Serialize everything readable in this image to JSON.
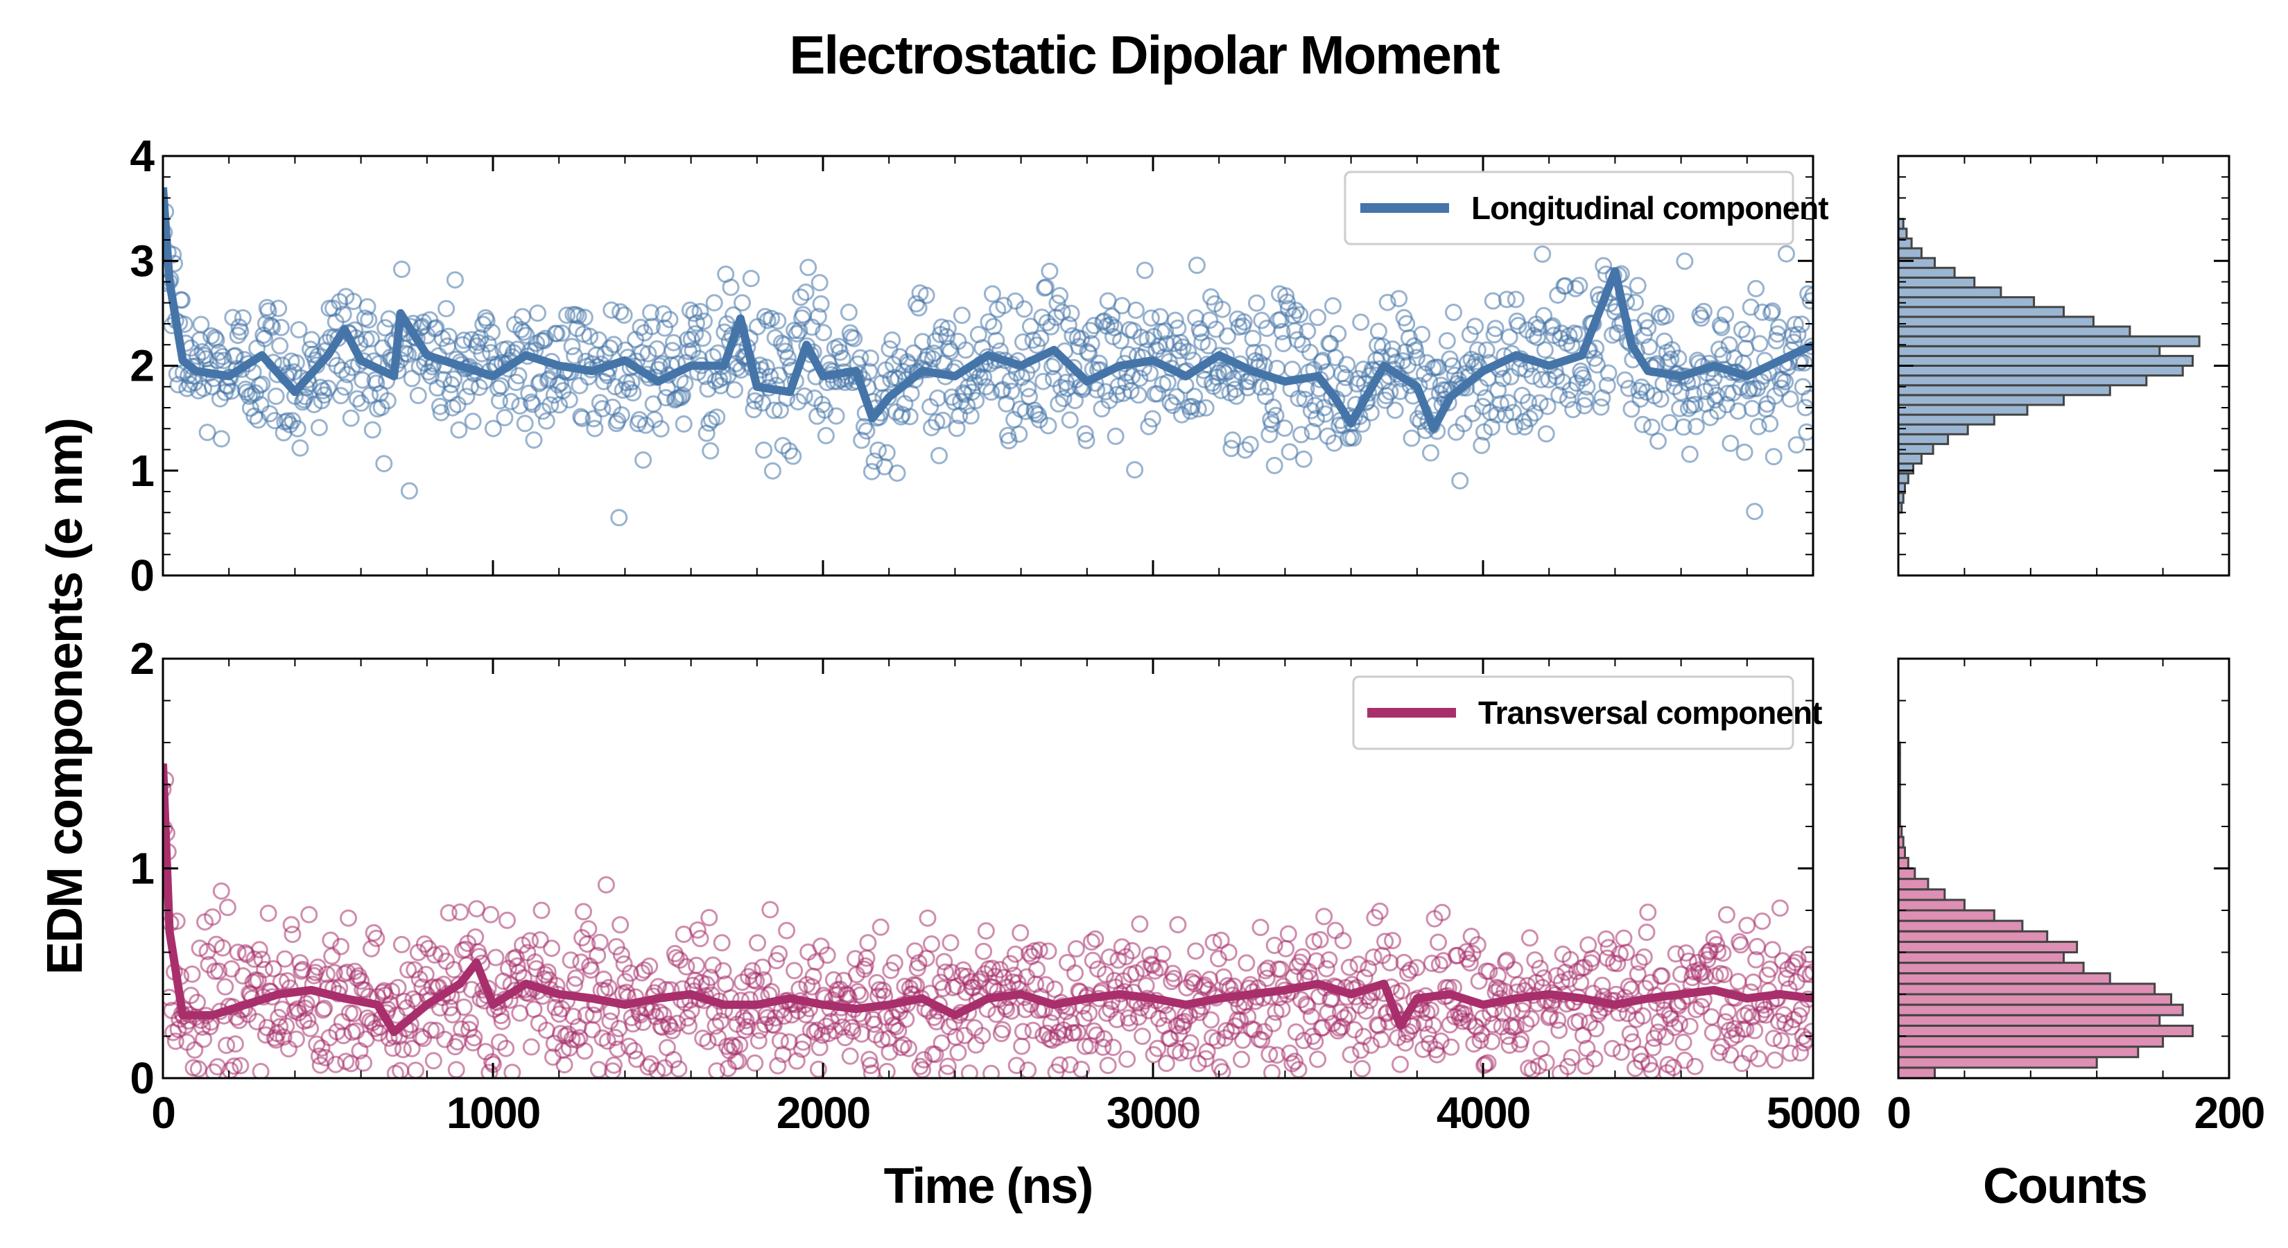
{
  "figure": {
    "title": "Electrostatic Dipolar Moment",
    "ylabel": "EDM components (e nm)",
    "xlabel_time": "Time (ns)",
    "xlabel_counts": "Counts"
  },
  "colors": {
    "longitudinal": "#4575a8",
    "longitudinal_hist": "#9bb6d2",
    "transversal": "#a82f6c",
    "transversal_hist": "#de8fb4",
    "hist_edge": "#444444"
  },
  "chart_data": [
    {
      "id": "longitudinal-timeseries",
      "type": "scatter+line",
      "series": [
        {
          "name": "Longitudinal component",
          "style": "line (running average) over hollow-circle scatter"
        }
      ],
      "legend_label": "Longitudinal component",
      "legend_placement": "top-right",
      "xlim": [
        0,
        5000
      ],
      "ylim": [
        0,
        4
      ],
      "yticks": [
        0,
        1,
        2,
        3,
        4
      ],
      "yticklabels": [
        "0",
        "1",
        "2",
        "3",
        "4"
      ],
      "initial_value": 3.7,
      "mean": 2.0,
      "scatter_std": 0.35,
      "avg_points": [
        [
          0,
          3.7
        ],
        [
          20,
          2.8
        ],
        [
          60,
          2.05
        ],
        [
          100,
          1.95
        ],
        [
          200,
          1.9
        ],
        [
          300,
          2.1
        ],
        [
          400,
          1.75
        ],
        [
          500,
          2.1
        ],
        [
          550,
          2.35
        ],
        [
          600,
          2.05
        ],
        [
          700,
          1.9
        ],
        [
          720,
          2.5
        ],
        [
          800,
          2.1
        ],
        [
          900,
          2.0
        ],
        [
          1000,
          1.9
        ],
        [
          1100,
          2.1
        ],
        [
          1200,
          2.0
        ],
        [
          1300,
          1.95
        ],
        [
          1400,
          2.05
        ],
        [
          1500,
          1.85
        ],
        [
          1600,
          2.0
        ],
        [
          1700,
          2.0
        ],
        [
          1750,
          2.45
        ],
        [
          1800,
          1.8
        ],
        [
          1900,
          1.75
        ],
        [
          1950,
          2.2
        ],
        [
          2000,
          1.9
        ],
        [
          2100,
          1.95
        ],
        [
          2150,
          1.5
        ],
        [
          2200,
          1.7
        ],
        [
          2300,
          1.95
        ],
        [
          2400,
          1.9
        ],
        [
          2500,
          2.1
        ],
        [
          2600,
          2.0
        ],
        [
          2700,
          2.15
        ],
        [
          2800,
          1.85
        ],
        [
          2900,
          2.0
        ],
        [
          3000,
          2.05
        ],
        [
          3100,
          1.9
        ],
        [
          3200,
          2.1
        ],
        [
          3300,
          1.95
        ],
        [
          3400,
          1.85
        ],
        [
          3500,
          1.9
        ],
        [
          3550,
          1.7
        ],
        [
          3600,
          1.45
        ],
        [
          3700,
          2.0
        ],
        [
          3800,
          1.8
        ],
        [
          3850,
          1.4
        ],
        [
          3900,
          1.7
        ],
        [
          4000,
          1.95
        ],
        [
          4100,
          2.1
        ],
        [
          4200,
          2.0
        ],
        [
          4300,
          2.1
        ],
        [
          4400,
          2.9
        ],
        [
          4450,
          2.2
        ],
        [
          4500,
          1.95
        ],
        [
          4600,
          1.9
        ],
        [
          4700,
          2.0
        ],
        [
          4800,
          1.9
        ],
        [
          4900,
          2.05
        ],
        [
          5000,
          2.2
        ]
      ]
    },
    {
      "id": "transversal-timeseries",
      "type": "scatter+line",
      "series": [
        {
          "name": "Transversal component",
          "style": "line (running average) over hollow-circle scatter"
        }
      ],
      "legend_label": "Transversal component",
      "legend_placement": "top-right",
      "xlim": [
        0,
        5000
      ],
      "ylim": [
        0,
        2
      ],
      "yticks": [
        0,
        1,
        2
      ],
      "yticklabels": [
        "0",
        "1",
        "2"
      ],
      "xticks": [
        0,
        1000,
        2000,
        3000,
        4000,
        5000
      ],
      "xticklabels": [
        "0",
        "1000",
        "2000",
        "3000",
        "4000",
        "5000"
      ],
      "initial_value": 1.5,
      "mean": 0.36,
      "scatter_std": 0.18,
      "avg_points": [
        [
          0,
          1.5
        ],
        [
          20,
          0.7
        ],
        [
          60,
          0.3
        ],
        [
          150,
          0.3
        ],
        [
          250,
          0.35
        ],
        [
          350,
          0.4
        ],
        [
          450,
          0.42
        ],
        [
          550,
          0.38
        ],
        [
          650,
          0.35
        ],
        [
          700,
          0.22
        ],
        [
          800,
          0.35
        ],
        [
          900,
          0.45
        ],
        [
          950,
          0.55
        ],
        [
          1000,
          0.35
        ],
        [
          1100,
          0.45
        ],
        [
          1200,
          0.4
        ],
        [
          1300,
          0.38
        ],
        [
          1400,
          0.35
        ],
        [
          1500,
          0.38
        ],
        [
          1600,
          0.4
        ],
        [
          1700,
          0.35
        ],
        [
          1800,
          0.35
        ],
        [
          1900,
          0.38
        ],
        [
          2000,
          0.35
        ],
        [
          2100,
          0.33
        ],
        [
          2200,
          0.35
        ],
        [
          2300,
          0.38
        ],
        [
          2400,
          0.3
        ],
        [
          2500,
          0.38
        ],
        [
          2600,
          0.4
        ],
        [
          2700,
          0.35
        ],
        [
          2800,
          0.38
        ],
        [
          2900,
          0.4
        ],
        [
          3000,
          0.38
        ],
        [
          3100,
          0.35
        ],
        [
          3200,
          0.38
        ],
        [
          3300,
          0.4
        ],
        [
          3400,
          0.42
        ],
        [
          3500,
          0.45
        ],
        [
          3600,
          0.4
        ],
        [
          3700,
          0.45
        ],
        [
          3750,
          0.25
        ],
        [
          3800,
          0.38
        ],
        [
          3900,
          0.4
        ],
        [
          4000,
          0.35
        ],
        [
          4100,
          0.38
        ],
        [
          4200,
          0.4
        ],
        [
          4300,
          0.38
        ],
        [
          4400,
          0.35
        ],
        [
          4500,
          0.38
        ],
        [
          4600,
          0.4
        ],
        [
          4700,
          0.42
        ],
        [
          4800,
          0.38
        ],
        [
          4900,
          0.4
        ],
        [
          5000,
          0.38
        ]
      ]
    },
    {
      "id": "longitudinal-histogram",
      "type": "bar",
      "orientation": "horizontal",
      "xlim": [
        0,
        200
      ],
      "ylim": [
        0,
        4
      ],
      "bin_range": [
        0.6,
        3.4
      ],
      "counts": [
        2,
        3,
        4,
        6,
        9,
        14,
        21,
        30,
        42,
        58,
        78,
        100,
        128,
        150,
        172,
        178,
        158,
        182,
        140,
        118,
        100,
        82,
        62,
        46,
        34,
        22,
        14,
        8,
        5,
        3
      ]
    },
    {
      "id": "transversal-histogram",
      "type": "bar",
      "orientation": "horizontal",
      "xlim": [
        0,
        200
      ],
      "ylim": [
        0,
        2
      ],
      "xticks": [
        0,
        200
      ],
      "xticklabels": [
        "0",
        "200"
      ],
      "bin_range": [
        0.0,
        1.6
      ],
      "counts": [
        22,
        120,
        145,
        160,
        178,
        158,
        172,
        165,
        155,
        128,
        112,
        100,
        108,
        90,
        75,
        58,
        40,
        28,
        18,
        10,
        6,
        4,
        3,
        2,
        1,
        1,
        1,
        1,
        1,
        1,
        1,
        1
      ]
    }
  ]
}
